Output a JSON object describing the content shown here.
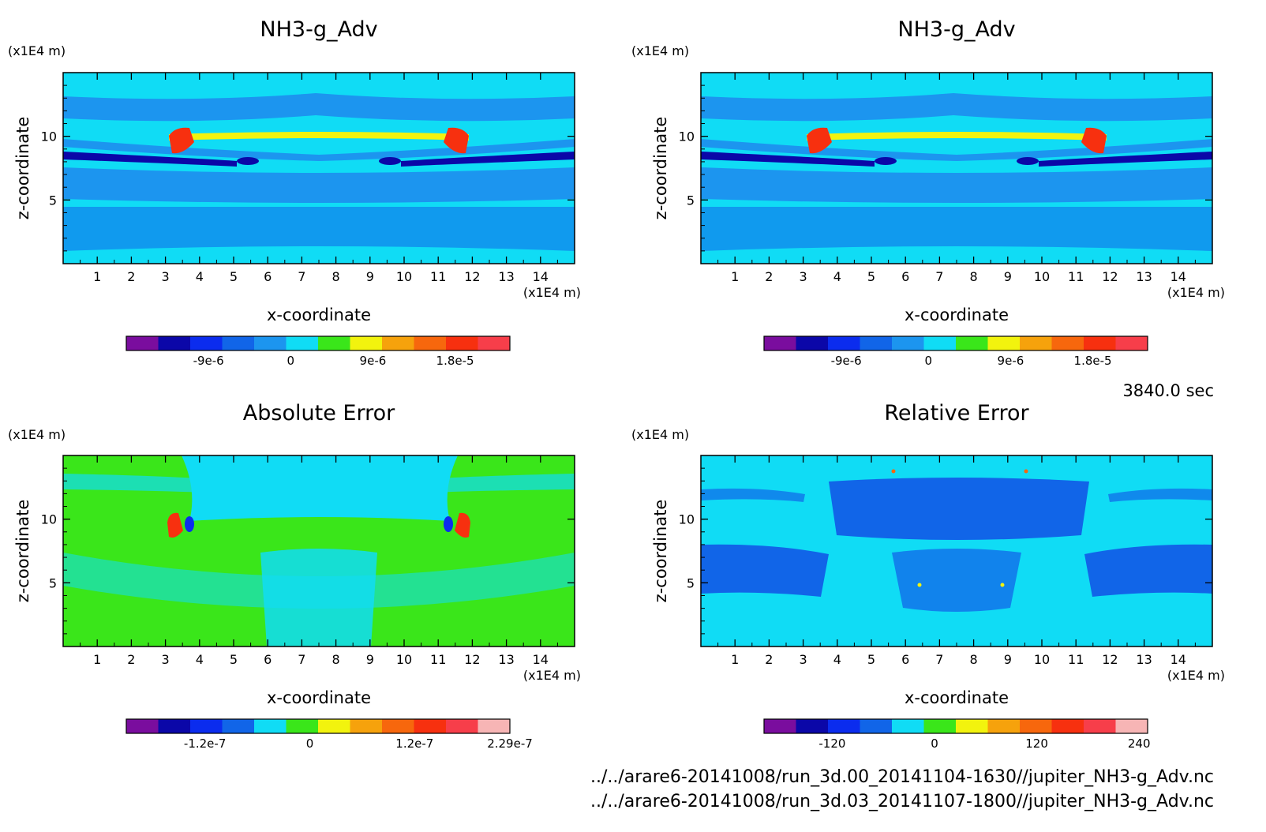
{
  "time_label": "3840.0 sec",
  "files": [
    "../../arare6-20141008/run_3d.00_20141104-1630//jupiter_NH3-g_Adv.nc",
    "../../arare6-20141008/run_3d.03_20141107-1800//jupiter_NH3-g_Adv.nc"
  ],
  "chart_data": [
    {
      "type": "heatmap",
      "title": "NH3-g_Adv",
      "xlabel": "x-coordinate",
      "ylabel": "z-coordinate",
      "x_unit": "(x1E4 m)",
      "y_unit": "(x1E4 m)",
      "xlim": [
        0,
        15
      ],
      "ylim": [
        0,
        15
      ],
      "xticks": [
        "1",
        "2",
        "3",
        "4",
        "5",
        "6",
        "7",
        "8",
        "9",
        "10",
        "11",
        "12",
        "13",
        "14"
      ],
      "yticks": [
        "5",
        "10"
      ],
      "colorbar": {
        "colors": [
          "#7a0d9e",
          "#0b07a8",
          "#0b2cee",
          "#1165e8",
          "#1c95ef",
          "#10dcf5",
          "#3ae61a",
          "#f2f30e",
          "#f6a20c",
          "#f7670d",
          "#f7300f",
          "#f73e4a"
        ],
        "labels": [
          "-9e-6",
          "0",
          "9e-6",
          "1.8e-5"
        ],
        "label_values": [
          -9e-06,
          0,
          9e-06,
          1.8e-05
        ],
        "range": [
          -1.8e-05,
          2.4e-05
        ]
      }
    },
    {
      "type": "heatmap",
      "title": "NH3-g_Adv",
      "xlabel": "x-coordinate",
      "ylabel": "z-coordinate",
      "x_unit": "(x1E4 m)",
      "y_unit": "(x1E4 m)",
      "xlim": [
        0,
        15
      ],
      "ylim": [
        0,
        15
      ],
      "xticks": [
        "1",
        "2",
        "3",
        "4",
        "5",
        "6",
        "7",
        "8",
        "9",
        "10",
        "11",
        "12",
        "13",
        "14"
      ],
      "yticks": [
        "5",
        "10"
      ],
      "colorbar": {
        "colors": [
          "#7a0d9e",
          "#0b07a8",
          "#0b2cee",
          "#1165e8",
          "#1c95ef",
          "#10dcf5",
          "#3ae61a",
          "#f2f30e",
          "#f6a20c",
          "#f7670d",
          "#f7300f",
          "#f73e4a"
        ],
        "labels": [
          "-9e-6",
          "0",
          "9e-6",
          "1.8e-5"
        ],
        "label_values": [
          -9e-06,
          0,
          9e-06,
          1.8e-05
        ],
        "range": [
          -1.8e-05,
          2.4e-05
        ]
      }
    },
    {
      "type": "heatmap",
      "title": "Absolute Error",
      "xlabel": "x-coordinate",
      "ylabel": "z-coordinate",
      "x_unit": "(x1E4 m)",
      "y_unit": "(x1E4 m)",
      "xlim": [
        0,
        15
      ],
      "ylim": [
        0,
        15
      ],
      "xticks": [
        "1",
        "2",
        "3",
        "4",
        "5",
        "6",
        "7",
        "8",
        "9",
        "10",
        "11",
        "12",
        "13",
        "14"
      ],
      "yticks": [
        "5",
        "10"
      ],
      "colorbar": {
        "colors": [
          "#7a0d9e",
          "#0b07a8",
          "#0b2cee",
          "#1165e8",
          "#10dcf5",
          "#3ae61a",
          "#f2f30e",
          "#f6a20c",
          "#f7670d",
          "#f7300f",
          "#f73e4a",
          "#f7b5b5"
        ],
        "labels": [
          "-1.2e-7",
          "0",
          "1.2e-7",
          "2.29e-7"
        ],
        "label_values": [
          -1.2e-07,
          0,
          1.2e-07,
          2.29e-07
        ],
        "range": [
          -2.1e-07,
          2.29e-07
        ]
      }
    },
    {
      "type": "heatmap",
      "title": "Relative Error",
      "xlabel": "x-coordinate",
      "ylabel": "z-coordinate",
      "x_unit": "(x1E4 m)",
      "y_unit": "(x1E4 m)",
      "xlim": [
        0,
        15
      ],
      "ylim": [
        0,
        15
      ],
      "xticks": [
        "1",
        "2",
        "3",
        "4",
        "5",
        "6",
        "7",
        "8",
        "9",
        "10",
        "11",
        "12",
        "13",
        "14"
      ],
      "yticks": [
        "5",
        "10"
      ],
      "colorbar": {
        "colors": [
          "#7a0d9e",
          "#0b07a8",
          "#0b2cee",
          "#1165e8",
          "#10dcf5",
          "#3ae61a",
          "#f2f30e",
          "#f6a20c",
          "#f7670d",
          "#f7300f",
          "#f73e4a",
          "#f7b5b5"
        ],
        "labels": [
          "-120",
          "0",
          "120",
          "240"
        ],
        "label_values": [
          -120,
          0,
          120,
          240
        ],
        "range": [
          -200,
          250
        ]
      }
    }
  ]
}
